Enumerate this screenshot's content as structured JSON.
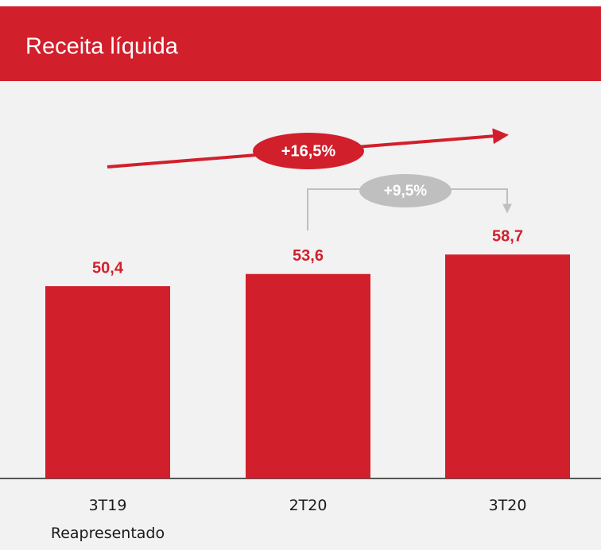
{
  "chart_data": {
    "type": "bar",
    "title": "Receita líquida",
    "categories": [
      "3T19\nReapresentado",
      "2T20",
      "3T20"
    ],
    "values": [
      50.4,
      53.6,
      58.7
    ],
    "value_labels": [
      "50,4",
      "53,6",
      "58,7"
    ],
    "color": "#d21f2c",
    "annotations": [
      {
        "text": "+16,5%",
        "color": "#d21f2c"
      },
      {
        "text": "+9,5%",
        "color": "#bfbfbf"
      }
    ]
  }
}
